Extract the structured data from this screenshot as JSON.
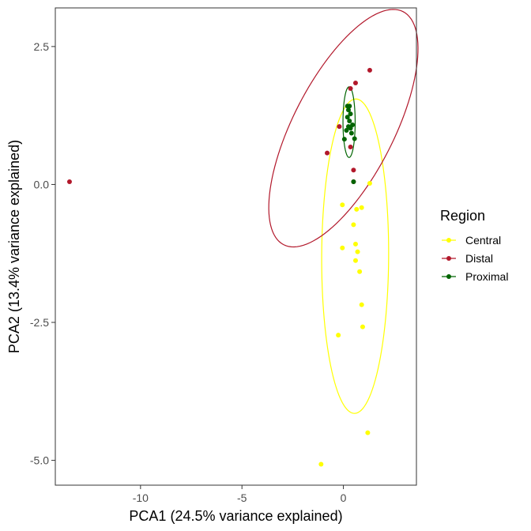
{
  "chart_data": {
    "type": "scatter",
    "title": "",
    "xlabel": "PCA1 (24.5% variance explained)",
    "ylabel": "PCA2 (13.4% variance explained)",
    "xlim": [
      -14.2,
      3.6
    ],
    "ylim": [
      -5.45,
      3.2
    ],
    "x_ticks": [
      -10,
      -5,
      0
    ],
    "x_tick_labels": [
      "-10",
      "-5",
      "0"
    ],
    "y_ticks": [
      2.5,
      0.0,
      -2.5,
      -5.0
    ],
    "y_tick_labels": [
      "2.5",
      "0.0",
      "-2.5",
      "-5.0"
    ],
    "grid": false,
    "legend": {
      "title": "Region",
      "position": "right"
    },
    "series": [
      {
        "name": "Central",
        "color": "#ffff00",
        "points": [
          [
            1.3,
            0.02
          ],
          [
            -0.05,
            -0.37
          ],
          [
            0.9,
            -0.42
          ],
          [
            0.65,
            -0.45
          ],
          [
            0.5,
            -0.73
          ],
          [
            -0.05,
            -1.15
          ],
          [
            0.6,
            -1.08
          ],
          [
            0.7,
            -1.22
          ],
          [
            0.6,
            -1.38
          ],
          [
            0.8,
            -1.58
          ],
          [
            0.9,
            -2.18
          ],
          [
            0.95,
            -2.58
          ],
          [
            -0.25,
            -2.73
          ],
          [
            1.2,
            -4.5
          ],
          [
            -1.1,
            -5.07
          ]
        ],
        "ellipse": {
          "cx": 0.58,
          "cy": -1.3,
          "rx": 1.65,
          "ry": 2.85,
          "angle_deg": -1
        }
      },
      {
        "name": "Distal",
        "color": "#b2182b",
        "points": [
          [
            -13.5,
            0.05
          ],
          [
            1.3,
            2.07
          ],
          [
            0.6,
            1.84
          ],
          [
            0.35,
            1.74
          ],
          [
            -0.2,
            1.05
          ],
          [
            -0.8,
            0.57
          ],
          [
            0.35,
            0.68
          ],
          [
            0.5,
            0.26
          ],
          [
            0.5,
            0.05
          ]
        ],
        "ellipse": {
          "cx": 0.0,
          "cy": 1.02,
          "rx": 4.0,
          "ry": 1.47,
          "angle_deg": 25
        }
      },
      {
        "name": "Proximal",
        "color": "#006400",
        "points": [
          [
            0.2,
            1.42
          ],
          [
            0.3,
            1.42
          ],
          [
            0.25,
            1.35
          ],
          [
            0.35,
            1.28
          ],
          [
            0.2,
            1.22
          ],
          [
            0.3,
            1.15
          ],
          [
            0.45,
            1.08
          ],
          [
            0.25,
            1.05
          ],
          [
            0.35,
            1.02
          ],
          [
            0.15,
            0.98
          ],
          [
            0.4,
            0.93
          ],
          [
            0.05,
            0.82
          ],
          [
            0.55,
            0.83
          ],
          [
            0.5,
            0.05
          ]
        ],
        "ellipse": {
          "cx": 0.28,
          "cy": 1.13,
          "rx": 0.3,
          "ry": 0.64,
          "angle_deg": 0
        }
      }
    ]
  }
}
